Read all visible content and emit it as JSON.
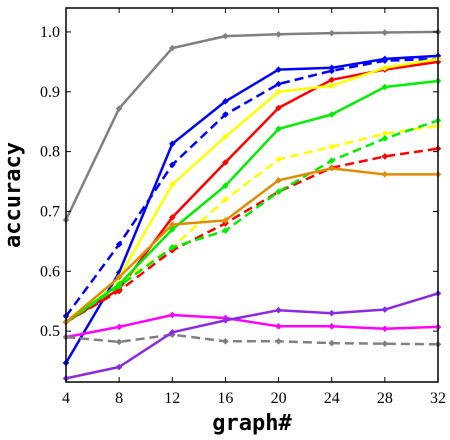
{
  "chart_data": {
    "type": "line",
    "title": "",
    "xlabel": "graph#",
    "ylabel": "accuracy",
    "x": [
      4,
      8,
      12,
      16,
      20,
      24,
      28,
      32
    ],
    "xticks": [
      4,
      8,
      12,
      16,
      20,
      24,
      28,
      32
    ],
    "yticks": [
      0.5,
      0.6,
      0.7,
      0.8,
      0.9,
      1.0
    ],
    "ytick_labels": [
      "0.5",
      "0.6",
      "0.7",
      "0.8",
      "0.9",
      "1.0"
    ],
    "xlim": [
      4,
      32
    ],
    "ylim": [
      0.415,
      1.04
    ],
    "grid": false,
    "legend": false,
    "series": [
      {
        "color": "#808080",
        "style": "solid",
        "values": [
          0.686,
          0.872,
          0.973,
          0.993,
          0.996,
          0.998,
          0.999,
          1.0
        ]
      },
      {
        "color": "#0000ff",
        "style": "solid",
        "values": [
          0.447,
          0.598,
          0.813,
          0.884,
          0.937,
          0.94,
          0.955,
          0.96
        ]
      },
      {
        "color": "#0000ff",
        "style": "dashed",
        "values": [
          0.525,
          0.645,
          0.778,
          0.862,
          0.913,
          0.935,
          0.952,
          0.955
        ]
      },
      {
        "color": "#ff0000",
        "style": "solid",
        "values": [
          0.515,
          0.57,
          0.69,
          0.782,
          0.873,
          0.92,
          0.937,
          0.95
        ]
      },
      {
        "color": "#ff0000",
        "style": "dashed",
        "values": [
          0.515,
          0.567,
          0.635,
          0.68,
          0.733,
          0.773,
          0.792,
          0.805
        ]
      },
      {
        "color": "#ffff00",
        "style": "solid",
        "values": [
          0.515,
          0.59,
          0.745,
          0.825,
          0.9,
          0.91,
          0.94,
          0.955
        ]
      },
      {
        "color": "#ffff00",
        "style": "dashed",
        "values": [
          0.515,
          0.58,
          0.64,
          0.72,
          0.787,
          0.808,
          0.83,
          0.843
        ]
      },
      {
        "color": "#00ee00",
        "style": "solid",
        "values": [
          0.515,
          0.578,
          0.67,
          0.743,
          0.838,
          0.862,
          0.908,
          0.918
        ]
      },
      {
        "color": "#00ee00",
        "style": "dashed",
        "values": [
          0.515,
          0.575,
          0.64,
          0.668,
          0.733,
          0.785,
          0.822,
          0.852
        ]
      },
      {
        "color": "#e08c00",
        "style": "solid",
        "values": [
          0.515,
          0.59,
          0.678,
          0.685,
          0.752,
          0.772,
          0.762,
          0.762
        ]
      },
      {
        "color": "#ff00ff",
        "style": "solid",
        "values": [
          0.49,
          0.507,
          0.527,
          0.522,
          0.508,
          0.508,
          0.504,
          0.507
        ]
      },
      {
        "color": "#808080",
        "style": "dashed",
        "values": [
          0.49,
          0.482,
          0.494,
          0.483,
          0.483,
          0.48,
          0.479,
          0.478
        ]
      },
      {
        "color": "#8a2be2",
        "style": "solid",
        "values": [
          0.421,
          0.44,
          0.498,
          0.518,
          0.535,
          0.53,
          0.536,
          0.563
        ]
      }
    ]
  }
}
